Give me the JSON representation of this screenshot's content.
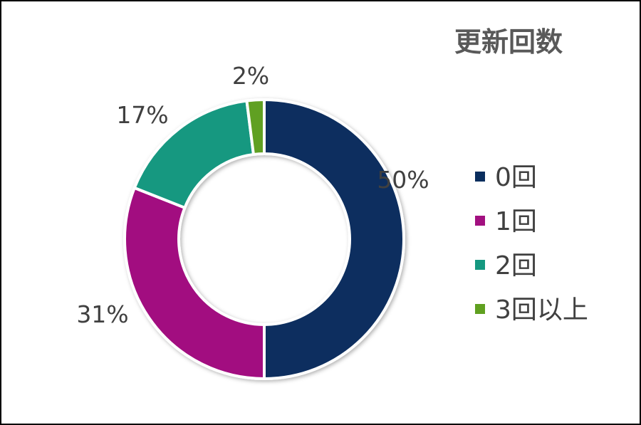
{
  "chart_data": {
    "type": "pie",
    "variant": "donut",
    "title": "更新回数",
    "categories": [
      "0回",
      "1回",
      "2回",
      "3回以上"
    ],
    "values": [
      50,
      31,
      17,
      2
    ],
    "labels": [
      "50%",
      "31%",
      "17%",
      "2%"
    ],
    "colors": [
      "#0A2E5E",
      "#A21080",
      "#159880",
      "#60A020"
    ],
    "legend_position": "right",
    "start": "top",
    "direction": "clockwise"
  }
}
